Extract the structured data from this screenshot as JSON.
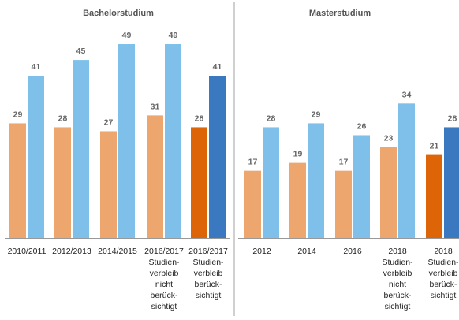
{
  "colors": {
    "light_orange": "#EEA66F",
    "light_blue": "#7EC0EA",
    "dark_orange": "#DE6408",
    "dark_blue": "#3A78C0",
    "axis": "#999999",
    "divider": "#A0A0A0"
  },
  "chart_data": [
    {
      "type": "bar",
      "title": "Bachelorstudium",
      "ylim": [
        0,
        55
      ],
      "categories": [
        [
          "2010/2011"
        ],
        [
          "2012/2013"
        ],
        [
          "2014/2015"
        ],
        [
          "2016/2017",
          "Studien-",
          "verbleib",
          "nicht",
          "berück-",
          "sichtigt"
        ],
        [
          "2016/2017",
          "Studien-",
          "verbleib",
          "berück-",
          "sichtigt"
        ]
      ],
      "series": [
        {
          "values": [
            29,
            28,
            27,
            31,
            28
          ]
        },
        {
          "values": [
            41,
            45,
            49,
            49,
            41
          ]
        }
      ],
      "highlight_index": 4
    },
    {
      "type": "bar",
      "title": "Masterstudium",
      "ylim": [
        0,
        55
      ],
      "categories": [
        [
          "2012"
        ],
        [
          "2014"
        ],
        [
          "2016"
        ],
        [
          "2018",
          "Studien-",
          "verbleib",
          "nicht",
          "berück-",
          "sichtigt"
        ],
        [
          "2018",
          "Studien-",
          "verbleib",
          "berück-",
          "sichtigt"
        ]
      ],
      "series": [
        {
          "values": [
            17,
            19,
            17,
            23,
            21
          ]
        },
        {
          "values": [
            28,
            29,
            26,
            34,
            28
          ]
        }
      ],
      "highlight_index": 4
    }
  ]
}
